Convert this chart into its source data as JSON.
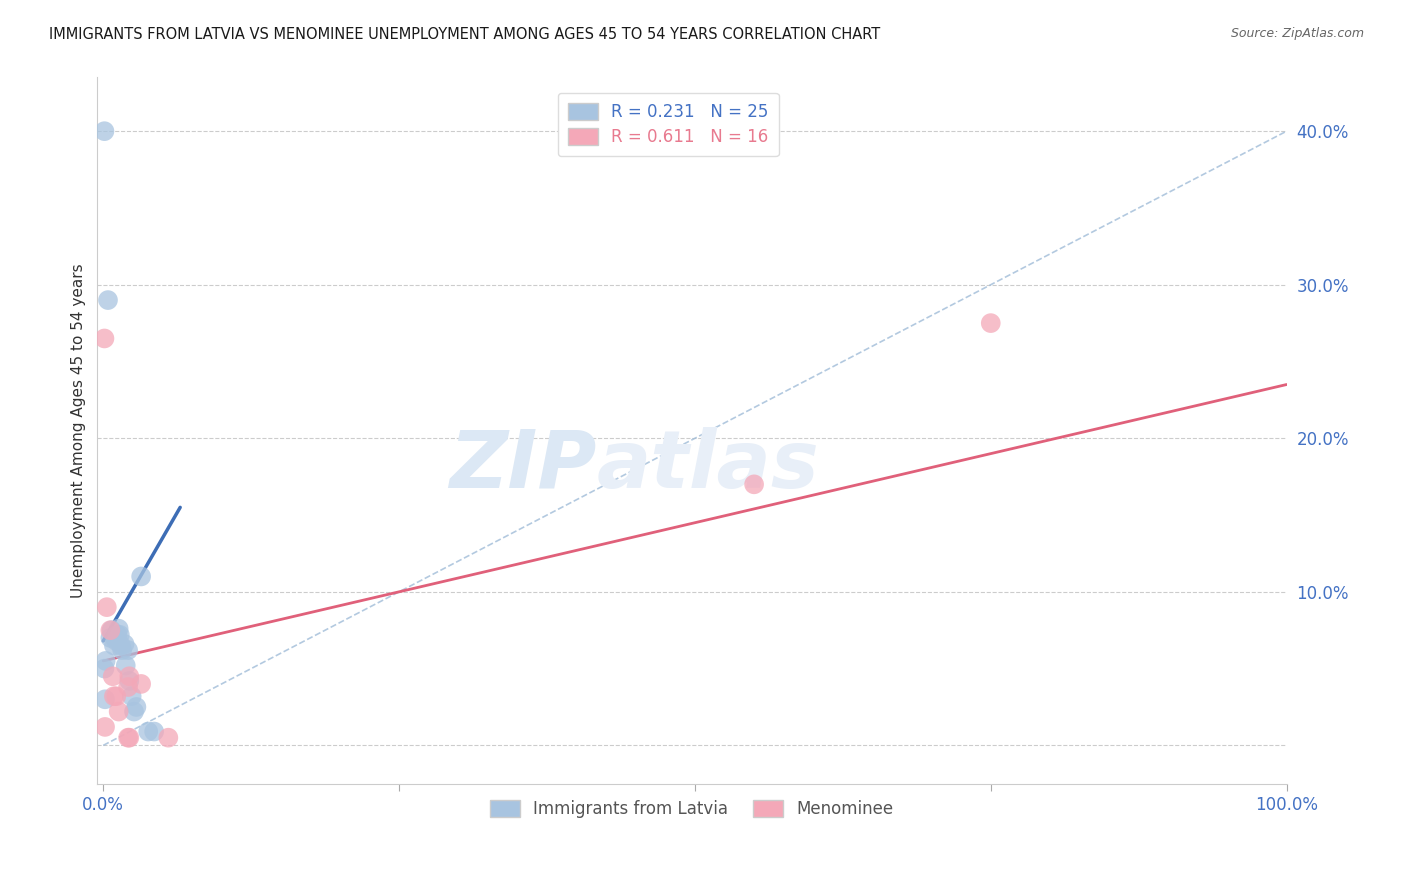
{
  "title": "IMMIGRANTS FROM LATVIA VS MENOMINEE UNEMPLOYMENT AMONG AGES 45 TO 54 YEARS CORRELATION CHART",
  "source": "Source: ZipAtlas.com",
  "ylabel": "Unemployment Among Ages 45 to 54 years",
  "xlim": [
    -0.005,
    1.0
  ],
  "ylim": [
    -0.025,
    0.435
  ],
  "xticks": [
    0.0,
    0.25,
    0.5,
    0.75,
    1.0
  ],
  "xticklabels": [
    "0.0%",
    "",
    "",
    "",
    "100.0%"
  ],
  "yticks": [
    0.0,
    0.1,
    0.2,
    0.3,
    0.4
  ],
  "yticklabels": [
    "",
    "10.0%",
    "20.0%",
    "30.0%",
    "40.0%"
  ],
  "legend1_r": "0.231",
  "legend1_n": "25",
  "legend2_r": "0.611",
  "legend2_n": "16",
  "legend_bottom_label1": "Immigrants from Latvia",
  "legend_bottom_label2": "Menominee",
  "blue_color": "#a8c4e0",
  "pink_color": "#f4a8b8",
  "blue_line_color": "#3d6db5",
  "pink_line_color": "#e0607a",
  "ref_line_color": "#a0bcd8",
  "blue_scatter_x": [
    0.001,
    0.004,
    0.006,
    0.007,
    0.009,
    0.01,
    0.011,
    0.012,
    0.013,
    0.014,
    0.015,
    0.016,
    0.018,
    0.019,
    0.021,
    0.022,
    0.024,
    0.026,
    0.028,
    0.032,
    0.038,
    0.043,
    0.001,
    0.002,
    0.0015
  ],
  "blue_scatter_y": [
    0.4,
    0.29,
    0.07,
    0.075,
    0.065,
    0.07,
    0.068,
    0.072,
    0.076,
    0.072,
    0.065,
    0.062,
    0.066,
    0.052,
    0.062,
    0.042,
    0.032,
    0.022,
    0.025,
    0.11,
    0.009,
    0.009,
    0.05,
    0.055,
    0.03
  ],
  "pink_scatter_x": [
    0.001,
    0.003,
    0.006,
    0.008,
    0.009,
    0.011,
    0.013,
    0.021,
    0.022,
    0.032,
    0.021,
    0.022,
    0.055,
    0.55,
    0.75,
    0.0015
  ],
  "pink_scatter_y": [
    0.265,
    0.09,
    0.075,
    0.045,
    0.032,
    0.032,
    0.022,
    0.005,
    0.045,
    0.04,
    0.038,
    0.005,
    0.005,
    0.17,
    0.275,
    0.012
  ],
  "blue_line_x": [
    0.0,
    0.065
  ],
  "blue_line_y": [
    0.068,
    0.155
  ],
  "pink_line_x": [
    0.0,
    1.0
  ],
  "pink_line_y": [
    0.055,
    0.235
  ],
  "ref_line_x": [
    0.0,
    1.0
  ],
  "ref_line_y": [
    0.0,
    0.4
  ],
  "watermark_line1": "ZIP",
  "watermark_line2": "atlas",
  "watermark_color": "#dce8f5"
}
